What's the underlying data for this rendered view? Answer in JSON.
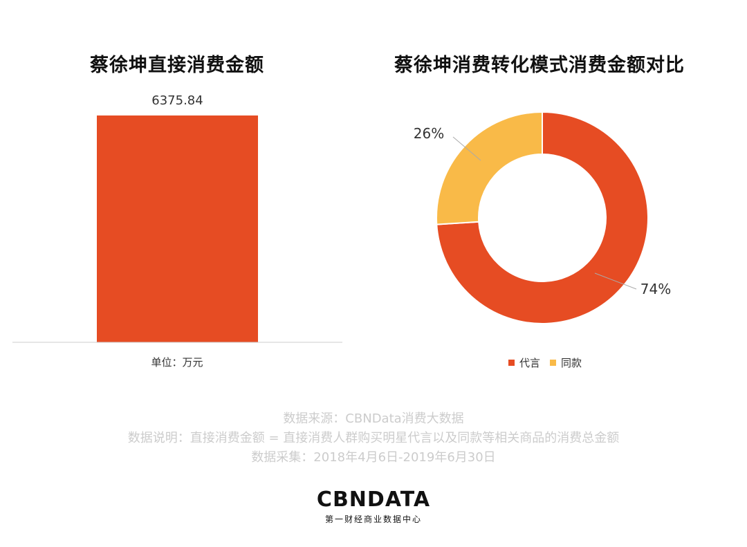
{
  "bar_chart": {
    "title": "蔡徐坤直接消费金额",
    "unit_label": "单位：万元"
  },
  "donut_chart": {
    "title": "蔡徐坤消费转化模式消费金额对比",
    "legend": [
      "代言",
      "同款"
    ]
  },
  "colors": {
    "primary": "#E64C23",
    "secondary": "#F9BA48",
    "axis": "#cccccc",
    "footnote": "#cccccc"
  },
  "footnotes": {
    "source": "数据来源：CBNData消费大数据",
    "description": "数据说明：直接消费金额 = 直接消费人群购买明星代言以及同款等相关商品的消费总金额",
    "period": "数据采集：2018年4月6日-2019年6月30日"
  },
  "logo": {
    "name": "CBNDATA",
    "tagline": "第一财经商业数据中心"
  },
  "chart_data": [
    {
      "type": "bar",
      "title": "蔡徐坤直接消费金额",
      "categories": [
        ""
      ],
      "values": [
        6375.84
      ],
      "value_labels": [
        "6375.84"
      ],
      "unit": "万元",
      "ylim": [
        0,
        6375.84
      ],
      "grid": false
    },
    {
      "type": "pie",
      "variant": "donut",
      "title": "蔡徐坤消费转化模式消费金额对比",
      "categories": [
        "代言",
        "同款"
      ],
      "values": [
        74,
        26
      ],
      "value_labels": [
        "74%",
        "26%"
      ],
      "legend": "bottom"
    }
  ]
}
